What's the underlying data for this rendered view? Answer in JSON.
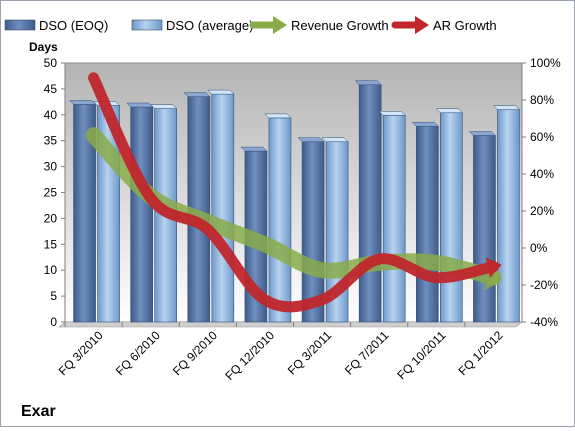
{
  "chart_data": {
    "type": "bar",
    "company": "Exar",
    "ylabel_left": "Days",
    "ylabel_right": "",
    "categories": [
      "FQ 3/2010",
      "FQ 6/2010",
      "FQ 9/2010",
      "FQ 12/2010",
      "FQ 3/2011",
      "FQ 7/2011",
      "FQ 10/2011",
      "FQ 1/2012"
    ],
    "ylim_left": [
      0,
      50
    ],
    "left_ticks": [
      "0",
      "5",
      "10",
      "15",
      "20",
      "25",
      "30",
      "35",
      "40",
      "45",
      "50"
    ],
    "ylim_right": [
      -40,
      100
    ],
    "right_ticks": [
      "-40%",
      "-20%",
      "0%",
      "20%",
      "40%",
      "60%",
      "80%",
      "100%"
    ],
    "grid": false,
    "legend_position": "top",
    "bar_series": [
      {
        "name": "DSO (EOQ)",
        "color": "#4f6e9e",
        "values": [
          42,
          41.5,
          43.5,
          33,
          34.8,
          45.8,
          37.8,
          36
        ]
      },
      {
        "name": "DSO (average)",
        "color": "#8fb4dc",
        "values": [
          41.8,
          41.2,
          44,
          39.4,
          34.8,
          39.9,
          40.4,
          41
        ]
      }
    ],
    "line_series": [
      {
        "name": "Revenue Growth",
        "color": "#8aab4a",
        "values": [
          61,
          28,
          14,
          2,
          -12,
          -8,
          -8,
          -16
        ]
      },
      {
        "name": "AR Growth",
        "color": "#c0262c",
        "values": [
          92,
          27,
          10,
          -28,
          -28,
          -6,
          -16,
          -10
        ]
      }
    ]
  }
}
